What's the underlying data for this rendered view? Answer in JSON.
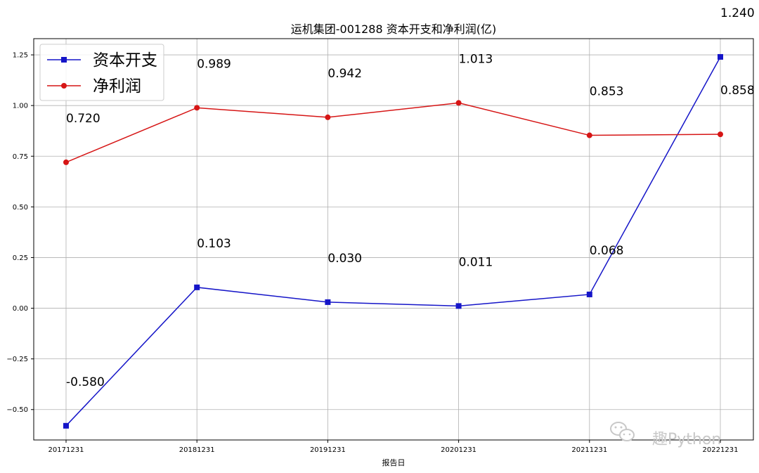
{
  "chart_data": {
    "type": "line",
    "title": "运机集团-001288 资本开支和净利润(亿)",
    "xlabel": "报告日",
    "ylabel": "",
    "categories": [
      "20171231",
      "20181231",
      "20191231",
      "20201231",
      "20211231",
      "20221231"
    ],
    "ylim": [
      -0.65,
      1.33
    ],
    "yticks": [
      -0.5,
      -0.25,
      0.0,
      0.25,
      0.5,
      0.75,
      1.0,
      1.25
    ],
    "ytick_labels": [
      "−0.50",
      "−0.25",
      "0.00",
      "0.25",
      "0.50",
      "0.75",
      "1.00",
      "1.25"
    ],
    "grid": true,
    "legend_position": "top-left",
    "series": [
      {
        "name": "资本开支",
        "values": [
          -0.58,
          0.103,
          0.03,
          0.011,
          0.068,
          1.24
        ],
        "labels": [
          "-0.580",
          "0.103",
          "0.030",
          "0.011",
          "0.068",
          "1.240"
        ],
        "color": "#1515c8",
        "marker": "square"
      },
      {
        "name": "净利润",
        "values": [
          0.72,
          0.989,
          0.942,
          1.013,
          0.853,
          0.858
        ],
        "labels": [
          "0.720",
          "0.989",
          "0.942",
          "1.013",
          "0.853",
          "0.858"
        ],
        "color": "#d61515",
        "marker": "circle"
      }
    ]
  },
  "watermark": {
    "text": "趣Python",
    "icon": "wechat-icon"
  }
}
